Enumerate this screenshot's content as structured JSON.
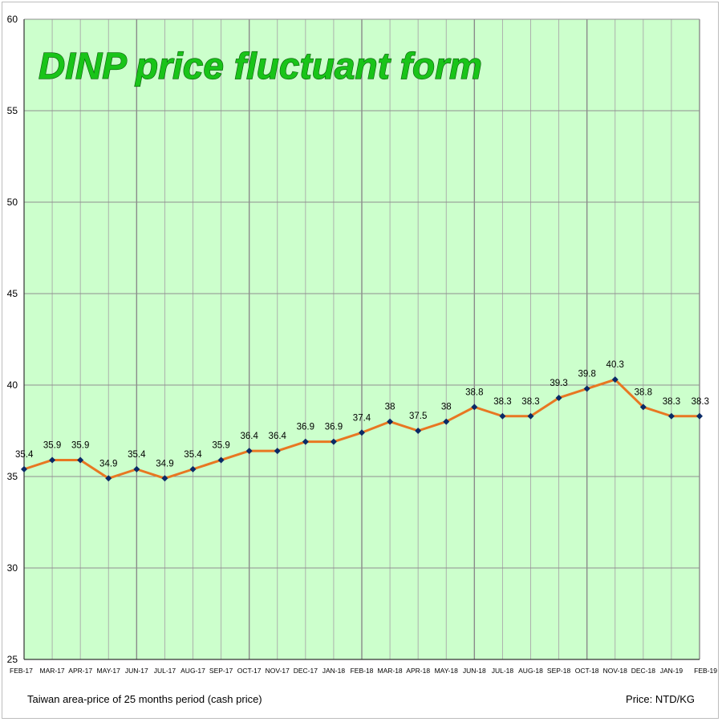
{
  "chart_data": {
    "type": "line",
    "title": "DINP price fluctuant form",
    "categories": [
      "FEB-17",
      "MAR-17",
      "APR-17",
      "MAY-17",
      "JUN-17",
      "JUL-17",
      "AUG-17",
      "SEP-17",
      "OCT-17",
      "NOV-17",
      "DEC-17",
      "JAN-18",
      "FEB-18",
      "MAR-18",
      "APR-18",
      "MAY-18",
      "JUN-18",
      "JUL-18",
      "AUG-18",
      "SEP-18",
      "OCT-18",
      "NOV-18",
      "DEC-18",
      "JAN-19",
      "FEB-19"
    ],
    "values": [
      35.4,
      35.9,
      35.9,
      34.9,
      35.4,
      34.9,
      35.4,
      35.9,
      36.4,
      36.4,
      36.9,
      36.9,
      37.4,
      38,
      37.5,
      38,
      38.8,
      38.3,
      38.3,
      39.3,
      39.8,
      40.3,
      38.8,
      38.3,
      38.3
    ],
    "ylim": [
      25,
      60
    ],
    "yticks": [
      25,
      30,
      35,
      40,
      45,
      50,
      55,
      60
    ],
    "grid": true,
    "line_color": "#e87722",
    "marker_color": "#0a2a66",
    "background_color": "#ccffcc",
    "title_color": "#19c419",
    "footnote_left": "Taiwan area-price of 25 months period (cash price)",
    "footnote_right": "Price: NTD/KG"
  }
}
